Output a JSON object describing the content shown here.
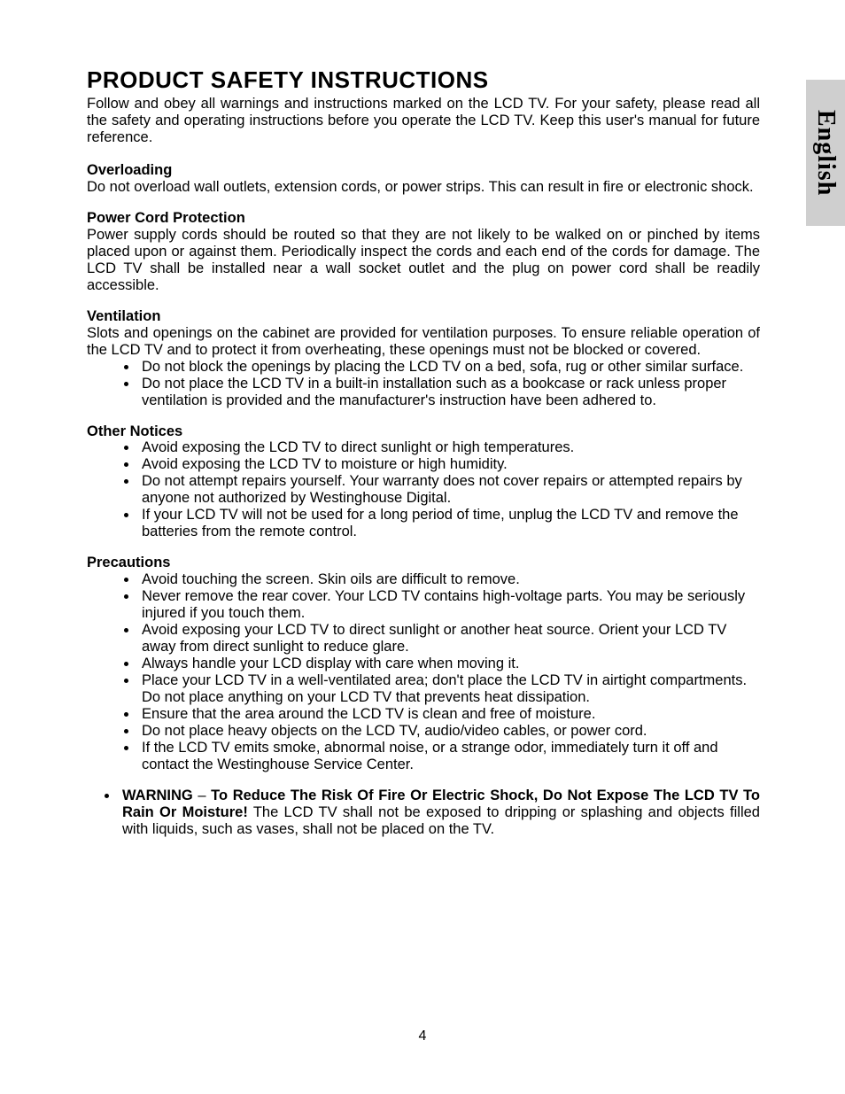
{
  "sideTab": "English",
  "pageNumber": "4",
  "title": "PRODUCT SAFETY INSTRUCTIONS",
  "intro": "Follow and obey all warnings and instructions marked on the LCD TV. For your safety, please read all the safety and operating instructions before you operate the LCD TV. Keep this user's manual for future reference.",
  "sections": {
    "overloading": {
      "heading": "Overloading",
      "body": "Do not overload wall outlets, extension cords, or power strips. This can result in fire or electronic shock."
    },
    "power": {
      "heading": "Power Cord Protection",
      "body": "Power supply cords should be routed so that they are not likely to be walked on or pinched by items placed upon or against them. Periodically inspect the cords and each end of the cords for damage. The LCD TV shall be installed near a wall socket outlet and the plug on power cord shall be readily accessible."
    },
    "ventilation": {
      "heading": "Ventilation",
      "body": "Slots and openings on the cabinet are provided for ventilation purposes. To ensure reliable operation of the LCD TV and to protect it from overheating, these openings must not be blocked or covered.",
      "bullets": [
        "Do not block the openings by placing the LCD TV on a bed, sofa, rug or other similar surface.",
        "Do not place the LCD TV in a built-in installation such as a bookcase or rack unless proper ventilation is provided and the manufacturer's instruction have been adhered to."
      ]
    },
    "other": {
      "heading": "Other Notices",
      "bullets": [
        "Avoid exposing the LCD TV to direct sunlight or high temperatures.",
        "Avoid exposing the LCD TV to moisture or high humidity.",
        "Do not attempt repairs yourself. Your warranty does not cover repairs or attempted repairs by anyone not authorized by Westinghouse Digital.",
        "If your LCD TV will not be used for a long period of time, unplug the LCD TV and remove the batteries from the remote control."
      ]
    },
    "precautions": {
      "heading": "Precautions",
      "bullets": [
        "Avoid touching the screen. Skin oils are difficult to remove.",
        "Never remove the rear cover. Your LCD TV contains high-voltage parts. You may be seriously injured if you touch them.",
        "Avoid exposing your LCD TV to direct sunlight or another heat source. Orient your LCD TV away from direct sunlight to reduce glare.",
        "Always handle your LCD display with care when moving it.",
        "Place your LCD TV in a well-ventilated area; don't place the LCD TV in airtight compartments. Do not place anything on your LCD TV that prevents heat dissipation.",
        "Ensure that the area around the LCD TV is clean and free of moisture.",
        "Do not place heavy objects on the LCD TV, audio/video cables, or power cord.",
        "If the LCD TV emits smoke, abnormal noise, or a strange odor, immediately turn it off and contact the Westinghouse Service Center."
      ]
    },
    "warning": {
      "label": "WARNING",
      "sep": " – ",
      "boldText": "To Reduce The Risk Of Fire Or Electric Shock, Do Not Expose The LCD TV To Rain Or Moisture!",
      "rest": " The LCD TV shall not be exposed to dripping or splashing and objects filled with liquids, such as vases, shall not be placed on the TV."
    }
  },
  "colors": {
    "background": "#ffffff",
    "text": "#000000",
    "tabBackground": "#cfcfcf"
  }
}
